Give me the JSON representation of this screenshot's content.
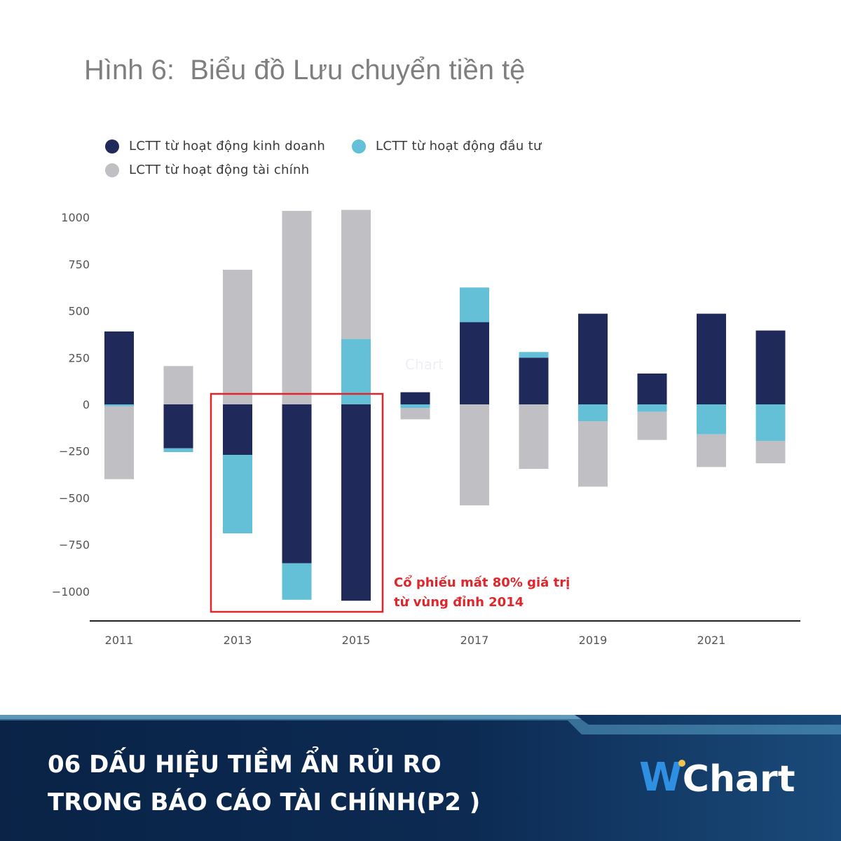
{
  "page": {
    "title": "Hình 6:  Biểu đồ Lưu chuyển tiền tệ",
    "watermark": "Chart",
    "annotation": {
      "line1": "Cổ phiếu mất 80% giá trị",
      "line2": "từ vùng đỉnh 2014",
      "color": "#e0262b"
    },
    "banner": {
      "line1": "06 DẤU HIỆU TIỀM ẨN RỦI RO",
      "line2": "TRONG BÁO CÁO TÀI CHÍNH(P2 )"
    },
    "brand": {
      "w": "W",
      "name": "Chart"
    }
  },
  "chart_data": {
    "type": "bar",
    "stacked": true,
    "categories": [
      "2011",
      "2012",
      "2013",
      "2014",
      "2015",
      "2016",
      "2017",
      "2018",
      "2019",
      "2020",
      "2021",
      "2022"
    ],
    "x_tick_labels": [
      "2011",
      "",
      "2013",
      "",
      "2015",
      "",
      "2017",
      "",
      "2019",
      "",
      "2021",
      ""
    ],
    "series": [
      {
        "name": "LCTT từ hoạt động kinh doanh",
        "color": "#1f2a5a",
        "values": [
          390,
          -235,
          -270,
          -850,
          -1050,
          65,
          440,
          250,
          485,
          165,
          485,
          395
        ]
      },
      {
        "name": "LCTT từ hoạt động đầu tư",
        "color": "#63c0d6",
        "values": [
          -10,
          -20,
          -420,
          -195,
          350,
          -20,
          185,
          30,
          -90,
          -40,
          -160,
          -195
        ]
      },
      {
        "name": "LCTT từ hoạt động tài chính",
        "color": "#c0bfc4",
        "values": [
          -390,
          205,
          720,
          1035,
          690,
          -60,
          -540,
          -345,
          -350,
          -150,
          -175,
          -120
        ]
      }
    ],
    "y_ticks": [
      1000,
      750,
      500,
      250,
      0,
      -250,
      -500,
      -750,
      -1000
    ],
    "y_tick_labels": [
      "1000",
      "750",
      "500",
      "250",
      "0",
      "−250",
      "−500",
      "−750",
      "−1000"
    ],
    "ylim": [
      -1150,
      1050
    ],
    "legend_position": "top-left",
    "grid": false,
    "highlight": {
      "categories": [
        "2013",
        "2014",
        "2015"
      ],
      "color": "#e0262b"
    }
  }
}
